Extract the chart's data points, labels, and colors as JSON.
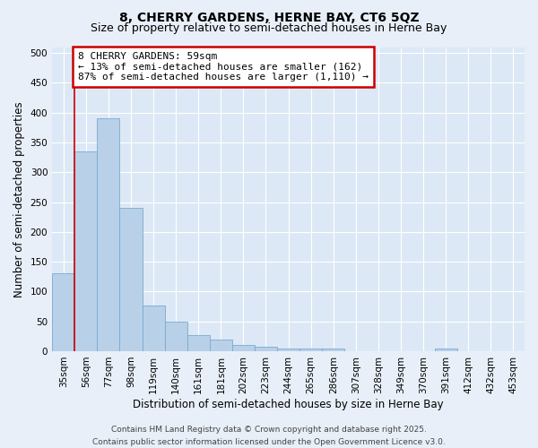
{
  "title_line1": "8, CHERRY GARDENS, HERNE BAY, CT6 5QZ",
  "title_line2": "Size of property relative to semi-detached houses in Herne Bay",
  "xlabel": "Distribution of semi-detached houses by size in Herne Bay",
  "ylabel": "Number of semi-detached properties",
  "categories": [
    "35sqm",
    "56sqm",
    "77sqm",
    "98sqm",
    "119sqm",
    "140sqm",
    "161sqm",
    "181sqm",
    "202sqm",
    "223sqm",
    "244sqm",
    "265sqm",
    "286sqm",
    "307sqm",
    "328sqm",
    "349sqm",
    "370sqm",
    "391sqm",
    "412sqm",
    "432sqm",
    "453sqm"
  ],
  "values": [
    130,
    335,
    390,
    240,
    77,
    50,
    27,
    20,
    11,
    7,
    5,
    5,
    4,
    0,
    0,
    0,
    0,
    4,
    0,
    0,
    0
  ],
  "bar_color": "#b8d0e8",
  "bar_edge_color": "#7aaad0",
  "property_label": "8 CHERRY GARDENS: 59sqm",
  "annotation_line1": "← 13% of semi-detached houses are smaller (162)",
  "annotation_line2": "87% of semi-detached houses are larger (1,110) →",
  "vline_color": "#cc0000",
  "vline_x_index": 0.5,
  "annotation_box_edge_color": "#cc0000",
  "ylim": [
    0,
    510
  ],
  "yticks": [
    0,
    50,
    100,
    150,
    200,
    250,
    300,
    350,
    400,
    450,
    500
  ],
  "footnote_line1": "Contains HM Land Registry data © Crown copyright and database right 2025.",
  "footnote_line2": "Contains public sector information licensed under the Open Government Licence v3.0.",
  "background_color": "#e8eff8",
  "plot_bg_color": "#dce8f5",
  "title_fontsize": 10,
  "subtitle_fontsize": 9,
  "axis_label_fontsize": 8.5,
  "tick_fontsize": 7.5,
  "annotation_fontsize": 8,
  "footnote_fontsize": 6.5
}
